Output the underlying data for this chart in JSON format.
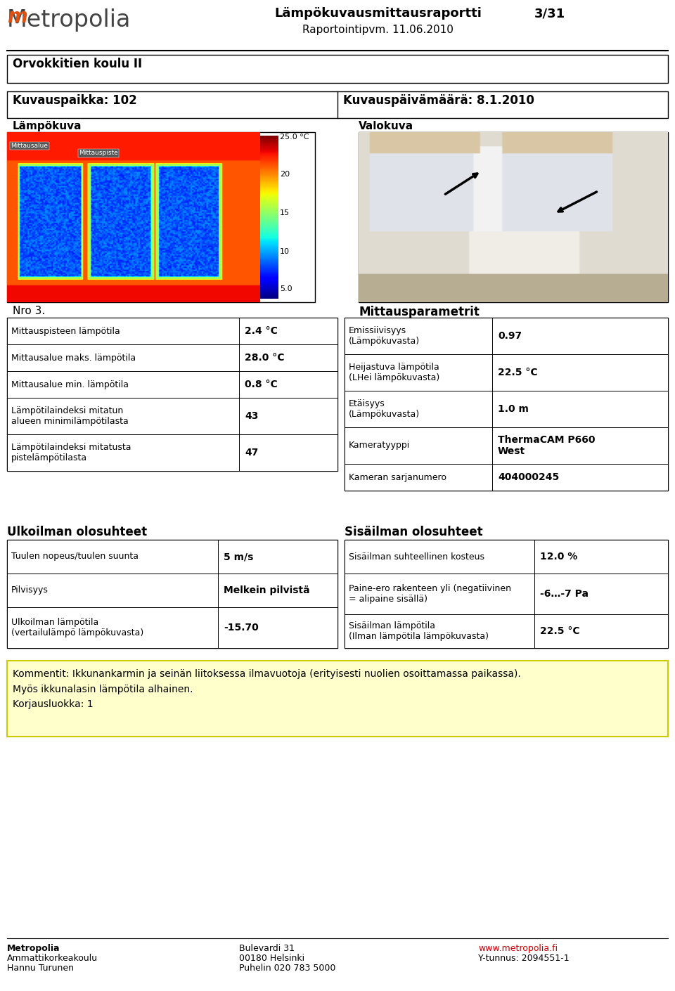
{
  "title_main": "Lämpökuvausmittausraportti",
  "title_page": "3/31",
  "title_date": "Raportointipvm. 11.06.2010",
  "school_name": "Orvokkitien koulu II",
  "kuvauspaikka": "Kuvauspaikka: 102",
  "kuvauspaivamaara": "Kuvauspäivämäärä: 8.1.2010",
  "lampokuva_label": "Lämpökuva",
  "valokuva_label": "Valokuva",
  "nro": "Nro 3.",
  "mittausparametrit": "Mittausparametrit",
  "left_table": [
    [
      "Mittauspisteen lämpötila",
      "2.4 °C"
    ],
    [
      "Mittausalue maks. lämpötila",
      "28.0 °C"
    ],
    [
      "Mittausalue min. lämpötila",
      "0.8 °C"
    ],
    [
      "Lämpötilaindeksi mitatun\nalueen minimilämpötilasta",
      "43"
    ],
    [
      "Lämpötilaindeksi mitatusta\npistelämpötilasta",
      "47"
    ]
  ],
  "right_table": [
    [
      "Emissiivisyys\n(Lämpökuvasta)",
      "0.97"
    ],
    [
      "Heijastuva lämpötila\n(LHei lämpökuvasta)",
      "22.5 °C"
    ],
    [
      "Etäisyys\n(Lämpökuvasta)",
      "1.0 m"
    ],
    [
      "Kameratyyppi",
      "ThermaCAM P660\nWest"
    ],
    [
      "Kameran sarjanumero",
      "404000245"
    ]
  ],
  "ulkoilman_title": "Ulkoilman olosuhteet",
  "sisailman_title": "Sisäilman olosuhteet",
  "ulko_table": [
    [
      "Tuulen nopeus/tuulen suunta",
      "5 m/s"
    ],
    [
      "Pilvisyys",
      "Melkein pilvistä"
    ],
    [
      "Ulkoilman lämpötila\n(vertailulämpö lämpökuvasta)",
      "-15.70"
    ]
  ],
  "sisa_table": [
    [
      "Sisäilman suhteellinen kosteus",
      "12.0 %"
    ],
    [
      "Paine-ero rakenteen yli (negatiivinen\n= alipaine sisällä)",
      "-6…-7 Pa"
    ],
    [
      "Sisäilman lämpötila\n(Ilman lämpötila lämpökuvasta)",
      "22.5 °C"
    ]
  ],
  "comment_text": "Kommentit: Ikkunankarmin ja seinän liitoksessa ilmavuotoja (erityisesti nuolien osoittamassa paikassa).\nMyös ikkunalasin lämpötila alhainen.\nKorjausluokka: 1",
  "footer_left1": "Metropolia",
  "footer_left2": "Ammattikorkeakoulu",
  "footer_left3": "Hannu Turunen",
  "footer_mid1": "Bulevardi 31",
  "footer_mid2": "00180 Helsinki",
  "footer_mid3": "Puhelin 020 783 5000",
  "footer_right1": "www.metropolia.fi",
  "footer_right2": "Y-tunnus: 2094551-1",
  "bg_color": "#ffffff",
  "comment_bg": "#ffffcc",
  "comment_border": "#cccc00"
}
